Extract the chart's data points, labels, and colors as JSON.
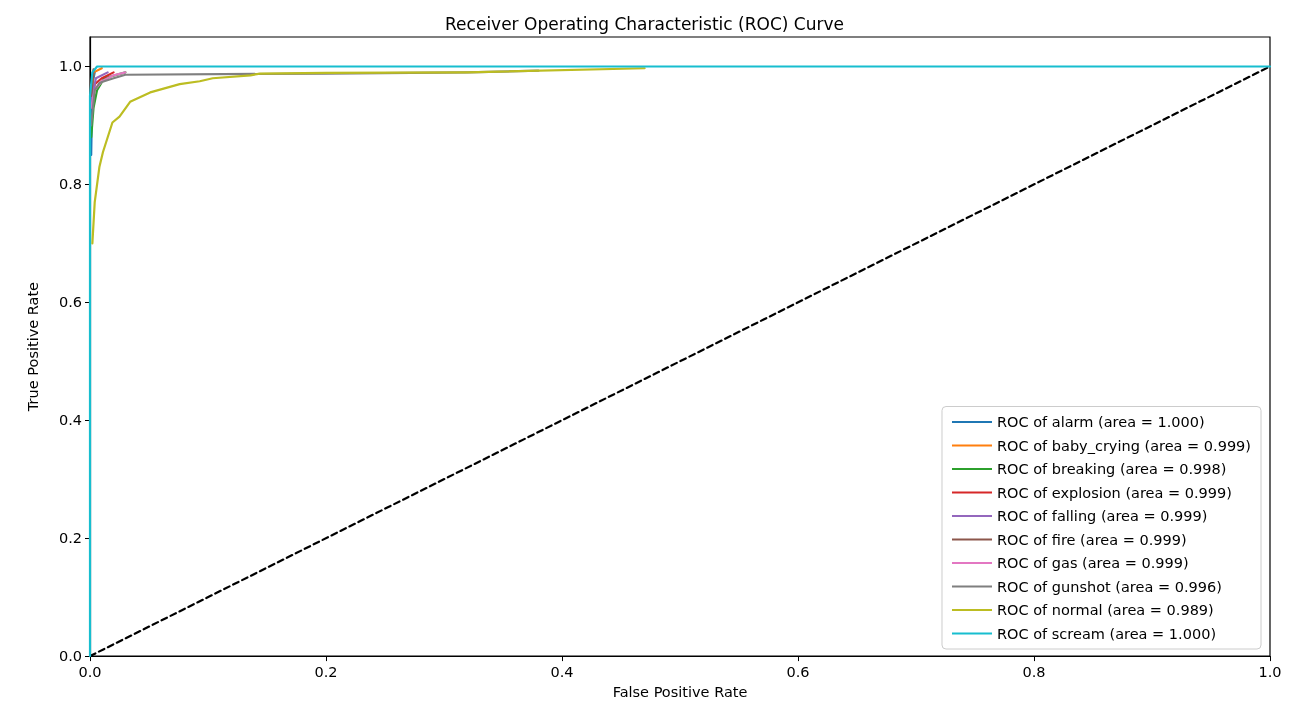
{
  "chart_data": {
    "type": "line",
    "title": "Receiver Operating Characteristic (ROC) Curve",
    "xlabel": "False Positive Rate",
    "ylabel": "True Positive Rate",
    "xlim": [
      0,
      1
    ],
    "ylim": [
      0,
      1.05
    ],
    "xticks": [
      {
        "value": 0,
        "label": "0.0"
      },
      0.2,
      0.4,
      0.6,
      0.8,
      {
        "value": 1,
        "label": "1.0"
      }
    ],
    "yticks": [
      {
        "value": 0,
        "label": "0.0"
      },
      0.2,
      0.4,
      0.6,
      0.8,
      {
        "value": 1,
        "label": "1.0"
      }
    ],
    "grid": false,
    "legend": "bottom right",
    "marker": "none",
    "line_style": "solid",
    "series": [
      {
        "name": "ROC of alarm (area = 1.000)",
        "color": "#1f77b4",
        "x": [
          0.001,
          0.002,
          0.004
        ],
        "values": [
          0.85,
          0.97,
          0.99
        ]
      },
      {
        "name": "ROC of baby_crying (area = 0.999)",
        "color": "#ff7f0e",
        "x": [
          0.001,
          0.003,
          0.01
        ],
        "values": [
          0.95,
          0.99,
          0.997
        ]
      },
      {
        "name": "ROC of breaking (area = 0.998)",
        "color": "#2ca02c",
        "x": [
          0.001,
          0.003,
          0.006,
          0.012,
          0.03
        ],
        "values": [
          0.88,
          0.93,
          0.96,
          0.98,
          0.99
        ]
      },
      {
        "name": "ROC of explosion (area = 0.999)",
        "color": "#d62728",
        "x": [
          0.001,
          0.004,
          0.01,
          0.02
        ],
        "values": [
          0.93,
          0.97,
          0.98,
          0.99
        ]
      },
      {
        "name": "ROC of falling (area = 0.999)",
        "color": "#9467bd",
        "x": [
          0.001,
          0.005,
          0.015
        ],
        "values": [
          0.94,
          0.98,
          0.99
        ]
      },
      {
        "name": "ROC of fire (area = 0.999)",
        "color": "#8c564b",
        "x": [
          0.001,
          0.003
        ],
        "values": [
          0.95,
          0.995
        ]
      },
      {
        "name": "ROC of gas (area = 0.999)",
        "color": "#e377c2",
        "x": [
          0.001,
          0.004,
          0.01,
          0.02,
          0.03
        ],
        "values": [
          0.93,
          0.96,
          0.975,
          0.985,
          0.99
        ]
      },
      {
        "name": "ROC of gunshot (area = 0.996)",
        "color": "#7f7f7f",
        "x": [
          0.001,
          0.004,
          0.008,
          0.012,
          0.02,
          0.03,
          0.2,
          0.32,
          0.38
        ],
        "values": [
          0.9,
          0.96,
          0.972,
          0.975,
          0.98,
          0.986,
          0.988,
          0.99,
          0.993
        ]
      },
      {
        "name": "ROC of normal (area = 0.989)",
        "color": "#bcbd22",
        "x": [
          0.002,
          0.004,
          0.008,
          0.011,
          0.015,
          0.019,
          0.025,
          0.034,
          0.051,
          0.076,
          0.093,
          0.104,
          0.136,
          0.144,
          0.2,
          0.32,
          0.47
        ],
        "values": [
          0.7,
          0.77,
          0.83,
          0.855,
          0.88,
          0.905,
          0.915,
          0.94,
          0.956,
          0.97,
          0.975,
          0.98,
          0.985,
          0.988,
          0.989,
          0.99,
          0.997
        ]
      },
      {
        "name": "ROC of scream (area = 1.000)",
        "color": "#17becf",
        "x": [
          0,
          0,
          0.002,
          0.006,
          1
        ],
        "values": [
          0,
          0.95,
          0.99,
          1,
          1
        ]
      },
      {
        "color": "#000000",
        "line_style": "dashed",
        "x": [
          0,
          1
        ],
        "values": [
          0,
          1
        ]
      }
    ]
  }
}
